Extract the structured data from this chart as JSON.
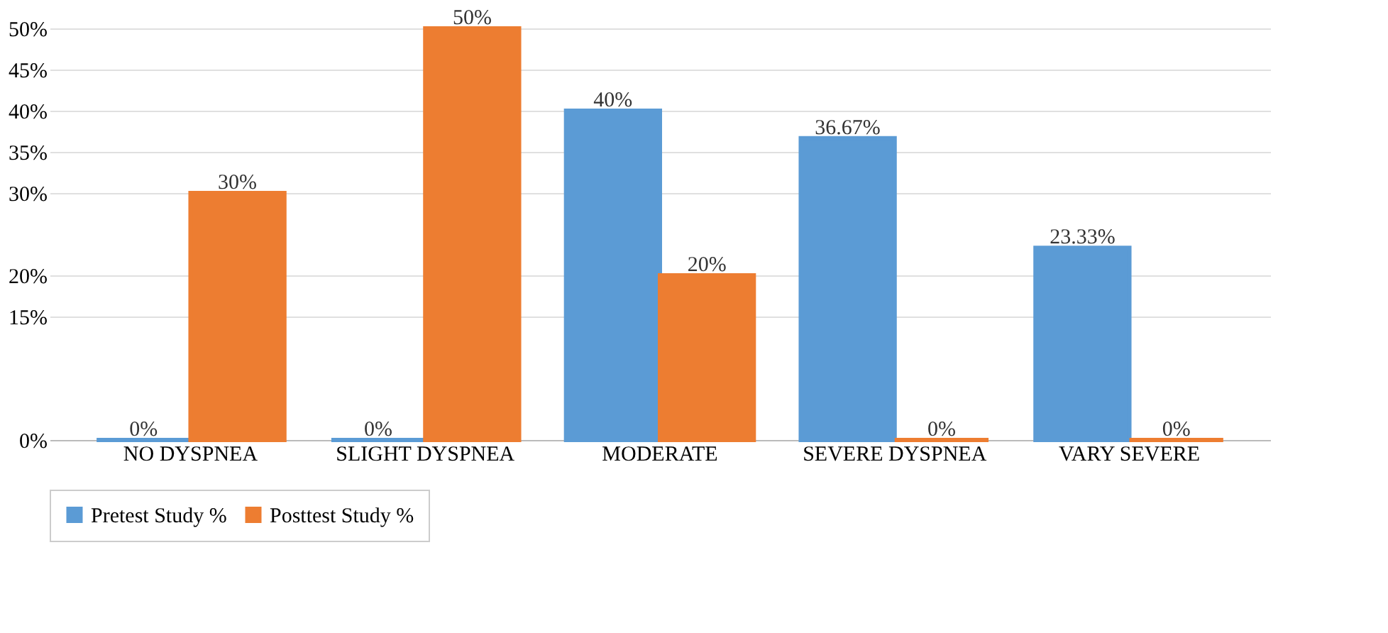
{
  "chart_data": {
    "type": "bar",
    "categories": [
      "NO DYSPNEA",
      "SLIGHT DYSPNEA",
      "MODERATE",
      "SEVERE DYSPNEA",
      "VARY SEVERE"
    ],
    "series": [
      {
        "name": "Pretest Study %",
        "color": "#5b9bd5",
        "values": [
          0,
          0,
          40,
          36.67,
          23.33
        ],
        "value_labels": [
          "0%",
          "0%",
          "40%",
          "36.67%",
          "23.33%"
        ]
      },
      {
        "name": "Posttest Study %",
        "color": "#ed7d31",
        "values": [
          30,
          50,
          20,
          0,
          0
        ],
        "value_labels": [
          "30%",
          "50%",
          "20%",
          "0%",
          "0%"
        ]
      }
    ],
    "ylim": [
      0,
      50
    ],
    "yticks": [
      {
        "value": 0,
        "label": "0%"
      },
      {
        "value": 15,
        "label": "15%"
      },
      {
        "value": 20,
        "label": "20%"
      },
      {
        "value": 30,
        "label": "30%"
      },
      {
        "value": 35,
        "label": "35%"
      },
      {
        "value": 40,
        "label": "40%"
      },
      {
        "value": 45,
        "label": "45%"
      },
      {
        "value": 50,
        "label": "50%"
      }
    ],
    "grid": "y",
    "legend": "bottom"
  }
}
